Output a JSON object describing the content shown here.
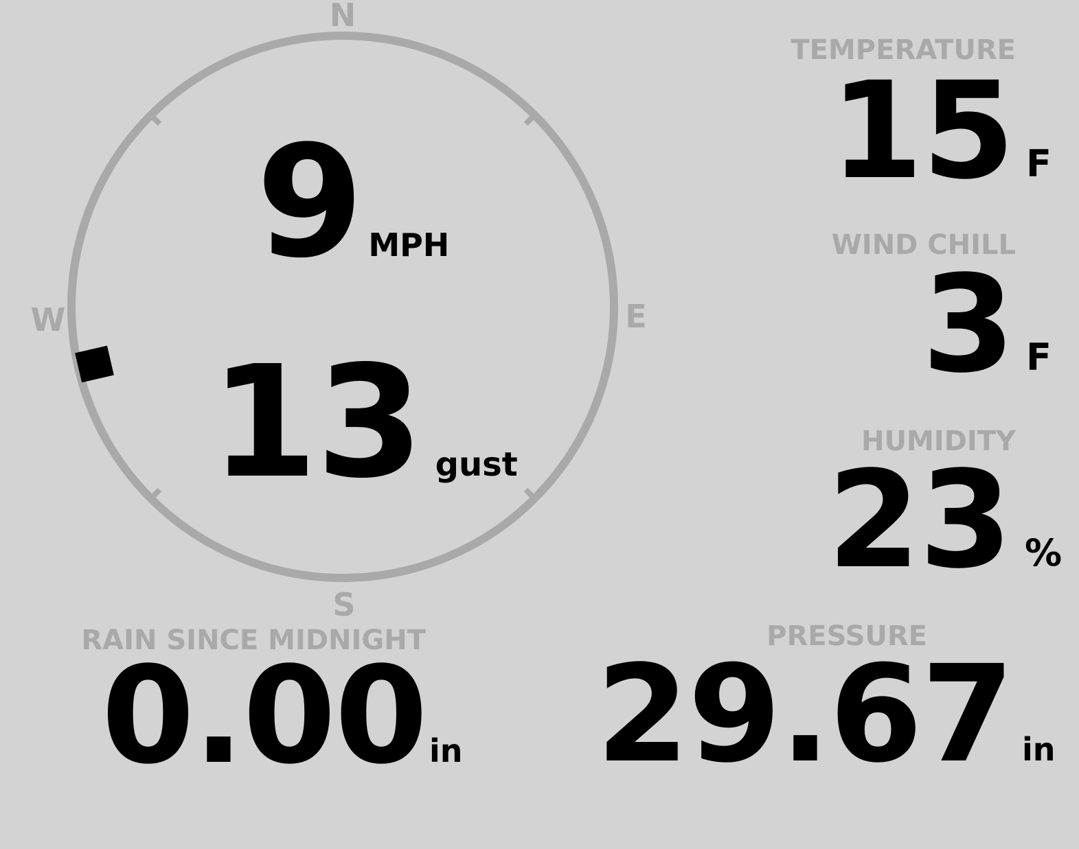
{
  "display": {
    "background_color": "#d3d3d3",
    "muted_color": "#a9a9a9",
    "value_color": "#000000"
  },
  "compass": {
    "cardinals": {
      "north": "N",
      "east": "E",
      "south": "S",
      "west": "W"
    },
    "speed": {
      "value": "9",
      "unit": "MPH"
    },
    "gust": {
      "value": "13",
      "unit": "gust"
    },
    "wind_direction_deg": 257
  },
  "metrics": {
    "temperature": {
      "label": "TEMPERATURE",
      "value": "15",
      "unit": "F"
    },
    "wind_chill": {
      "label": "WIND CHILL",
      "value": "3",
      "unit": "F"
    },
    "humidity": {
      "label": "HUMIDITY",
      "value": "23",
      "unit": "%"
    },
    "rain_since_midnight": {
      "label": "RAIN SINCE MIDNIGHT",
      "value": "0.00",
      "unit": "in"
    },
    "pressure": {
      "label": "PRESSURE",
      "value": "29.67",
      "unit": "in"
    }
  }
}
